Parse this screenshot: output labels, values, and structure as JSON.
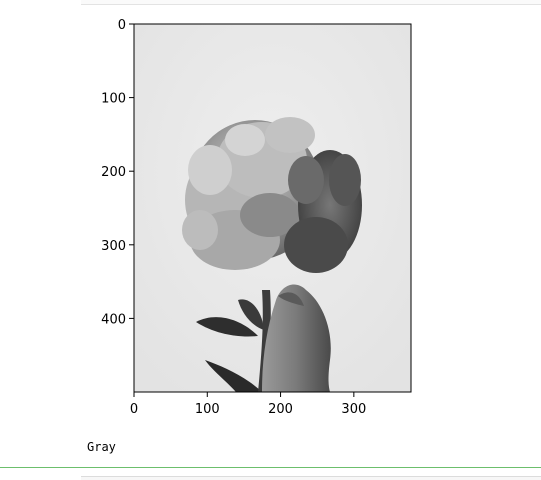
{
  "chart_data": {
    "type": "image",
    "colormap": "gray",
    "image_description_icon": "peony-flower-in-hand-photo",
    "x_ticks": [
      "0",
      "100",
      "200",
      "300"
    ],
    "y_ticks": [
      "0",
      "100",
      "200",
      "300",
      "400"
    ],
    "xlim": [
      0,
      378
    ],
    "ylim": [
      500,
      0
    ],
    "x_tick_values": [
      0,
      100,
      200,
      300
    ],
    "y_tick_values": [
      0,
      100,
      200,
      300,
      400
    ]
  },
  "output": {
    "text": "Gray"
  }
}
